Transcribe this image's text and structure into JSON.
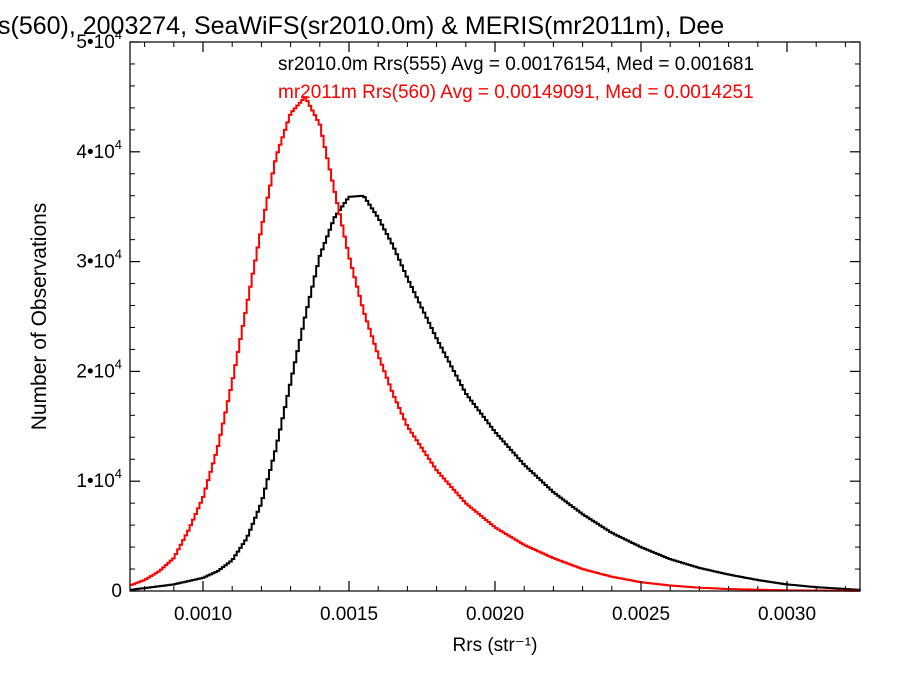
{
  "chart_data": {
    "type": "line",
    "title": "s(560), 2003274, SeaWiFS(sr2010.0m) & MERIS(mr2011m), Dee",
    "xlabel": "Rrs (str⁻¹)",
    "ylabel": "Number of Observations",
    "xlim": [
      0.00075,
      0.00325
    ],
    "ylim": [
      0,
      50000
    ],
    "x_ticks": [
      0.001,
      0.0015,
      0.002,
      0.0025,
      0.003
    ],
    "x_tick_labels": [
      "0.0010",
      "0.0015",
      "0.0020",
      "0.0025",
      "0.0030"
    ],
    "y_ticks": [
      {
        "value": 0,
        "mantissa": "0",
        "exp": ""
      },
      {
        "value": 10000,
        "mantissa": "1•10",
        "exp": "4"
      },
      {
        "value": 20000,
        "mantissa": "2•10",
        "exp": "4"
      },
      {
        "value": 30000,
        "mantissa": "3•10",
        "exp": "4"
      },
      {
        "value": 40000,
        "mantissa": "4•10",
        "exp": "4"
      },
      {
        "value": 50000,
        "mantissa": "5•10",
        "exp": "4"
      }
    ],
    "grid": false,
    "legend_position": "top-right",
    "series": [
      {
        "name": "sr2010.0m Rrs(555) Avg = 0.00176154, Med = 0.001681",
        "color": "#000000",
        "step": true,
        "x": [
          0.00075,
          0.0009,
          0.001,
          0.00105,
          0.0011,
          0.00115,
          0.0012,
          0.00125,
          0.0013,
          0.00135,
          0.0014,
          0.00145,
          0.0015,
          0.00155,
          0.0016,
          0.00165,
          0.0017,
          0.0018,
          0.0019,
          0.002,
          0.0021,
          0.0022,
          0.0023,
          0.0024,
          0.0025,
          0.0026,
          0.0027,
          0.0028,
          0.0029,
          0.003,
          0.0031,
          0.00325
        ],
        "y": [
          100,
          600,
          1200,
          1800,
          2800,
          4800,
          8000,
          13000,
          19000,
          25000,
          30500,
          34000,
          35900,
          36000,
          34000,
          31500,
          28500,
          23000,
          18000,
          14500,
          11500,
          9000,
          7000,
          5300,
          4000,
          2900,
          2100,
          1500,
          1000,
          600,
          350,
          100
        ]
      },
      {
        "name": "mr2011m Rrs(560) Avg = 0.00149091, Med = 0.0014251",
        "color": "#ff0000",
        "step": true,
        "x": [
          0.00075,
          0.0008,
          0.00085,
          0.0009,
          0.00095,
          0.001,
          0.00105,
          0.0011,
          0.00115,
          0.0012,
          0.00125,
          0.0013,
          0.00135,
          0.0014,
          0.00145,
          0.0015,
          0.00155,
          0.0016,
          0.00165,
          0.0017,
          0.0018,
          0.0019,
          0.002,
          0.0021,
          0.0022,
          0.0023,
          0.0024,
          0.0025,
          0.0026,
          0.0027,
          0.0028,
          0.003,
          0.00325
        ],
        "y": [
          500,
          1000,
          1800,
          3000,
          5500,
          8500,
          13000,
          19000,
          26000,
          33000,
          39500,
          43500,
          45000,
          42500,
          36500,
          30500,
          25500,
          21500,
          18000,
          15000,
          11000,
          8000,
          5800,
          4200,
          3000,
          2000,
          1300,
          800,
          500,
          300,
          180,
          60,
          20
        ]
      }
    ]
  }
}
